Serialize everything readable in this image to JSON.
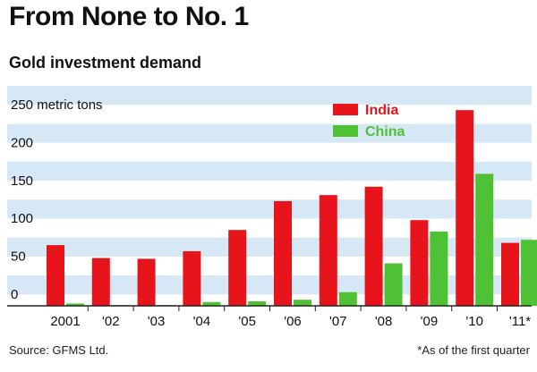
{
  "header": {
    "title": "From None to No. 1",
    "subtitle": "Gold investment demand"
  },
  "footer": {
    "source": "Source: GFMS Ltd.",
    "footnote": "*As of the first quarter"
  },
  "colors": {
    "india": "#e8141b",
    "china": "#4ec234",
    "band": "#d6e7f5",
    "axis": "#222222"
  },
  "chart_data": {
    "type": "bar",
    "categories": [
      "2001",
      "'02",
      "'03",
      "'04",
      "'05",
      "'06",
      "'07",
      "'08",
      "'09",
      "'10",
      "'11*"
    ],
    "series": [
      {
        "name": "India",
        "values": [
          80,
          63,
          62,
          72,
          100,
          138,
          146,
          157,
          113,
          258,
          83
        ]
      },
      {
        "name": "China",
        "values": [
          3,
          1,
          1,
          5,
          6,
          8,
          18,
          56,
          98,
          174,
          87
        ]
      }
    ],
    "ylim": [
      0,
      250
    ],
    "yticks": [
      0,
      50,
      100,
      150,
      200,
      250
    ],
    "ytick_labels": [
      "0",
      "50",
      "100",
      "150",
      "200",
      "250 metric tons"
    ],
    "legend_position": "top-center",
    "banded_background": true
  }
}
